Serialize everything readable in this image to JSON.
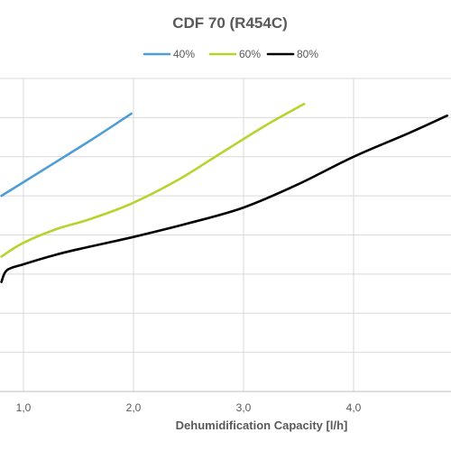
{
  "chart_data": {
    "type": "line",
    "title": "CDF 70 (R454C)",
    "xlabel": "Dehumidification Capacity [l/h]",
    "ylabel": "",
    "xlim": [
      0.8,
      5.0
    ],
    "x_ticks": [
      1.0,
      2.0,
      3.0,
      4.0
    ],
    "x_tick_labels": [
      "1,0",
      "2,0",
      "3,0",
      "4,0"
    ],
    "ylim": [
      0,
      8
    ],
    "y_gridlines": [
      1,
      2,
      3,
      4,
      5,
      6,
      7
    ],
    "grid": true,
    "legend_position": "top",
    "series": [
      {
        "name": "40%",
        "color": "#4e9dd4",
        "points": [
          [
            0.8,
            5.0
          ],
          [
            1.2,
            5.7
          ],
          [
            1.6,
            6.4
          ],
          [
            1.98,
            7.1
          ]
        ]
      },
      {
        "name": "60%",
        "color": "#b7d32e",
        "points": [
          [
            0.8,
            3.45
          ],
          [
            1.0,
            3.8
          ],
          [
            1.3,
            4.15
          ],
          [
            1.6,
            4.4
          ],
          [
            1.98,
            4.8
          ],
          [
            2.4,
            5.4
          ],
          [
            2.8,
            6.1
          ],
          [
            3.2,
            6.8
          ],
          [
            3.55,
            7.35
          ]
        ]
      },
      {
        "name": "80%",
        "color": "#000000",
        "points": [
          [
            0.8,
            2.8
          ],
          [
            0.85,
            3.1
          ],
          [
            1.0,
            3.25
          ],
          [
            1.3,
            3.5
          ],
          [
            1.6,
            3.7
          ],
          [
            2.0,
            3.95
          ],
          [
            2.5,
            4.3
          ],
          [
            3.0,
            4.7
          ],
          [
            3.5,
            5.3
          ],
          [
            4.0,
            6.0
          ],
          [
            4.5,
            6.6
          ],
          [
            4.85,
            7.05
          ]
        ]
      }
    ]
  }
}
